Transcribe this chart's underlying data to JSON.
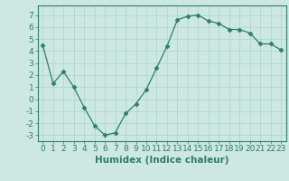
{
  "x": [
    0,
    1,
    2,
    3,
    4,
    5,
    6,
    7,
    8,
    9,
    10,
    11,
    12,
    13,
    14,
    15,
    16,
    17,
    18,
    19,
    20,
    21,
    22,
    23
  ],
  "y": [
    4.5,
    1.3,
    2.3,
    1.0,
    -0.7,
    -2.2,
    -3.0,
    -2.8,
    -1.2,
    -0.4,
    0.8,
    2.6,
    4.4,
    6.6,
    6.9,
    7.0,
    6.5,
    6.3,
    5.8,
    5.8,
    5.5,
    4.6,
    4.6,
    4.1
  ],
  "line_color": "#2e7d6e",
  "marker": "D",
  "marker_size": 2.5,
  "bg_color": "#cce8e0",
  "grid_color": "#aad4ca",
  "xlabel": "Humidex (Indice chaleur)",
  "ylim": [
    -3.5,
    7.8
  ],
  "xlim": [
    -0.5,
    23.5
  ],
  "yticks": [
    -3,
    -2,
    -1,
    0,
    1,
    2,
    3,
    4,
    5,
    6,
    7
  ],
  "xticks": [
    0,
    1,
    2,
    3,
    4,
    5,
    6,
    7,
    8,
    9,
    10,
    11,
    12,
    13,
    14,
    15,
    16,
    17,
    18,
    19,
    20,
    21,
    22,
    23
  ],
  "tick_color": "#2e7d6e",
  "label_color": "#2e7d6e",
  "spine_color": "#2e7d6e",
  "font_size": 6.5,
  "xlabel_fontsize": 7.5
}
